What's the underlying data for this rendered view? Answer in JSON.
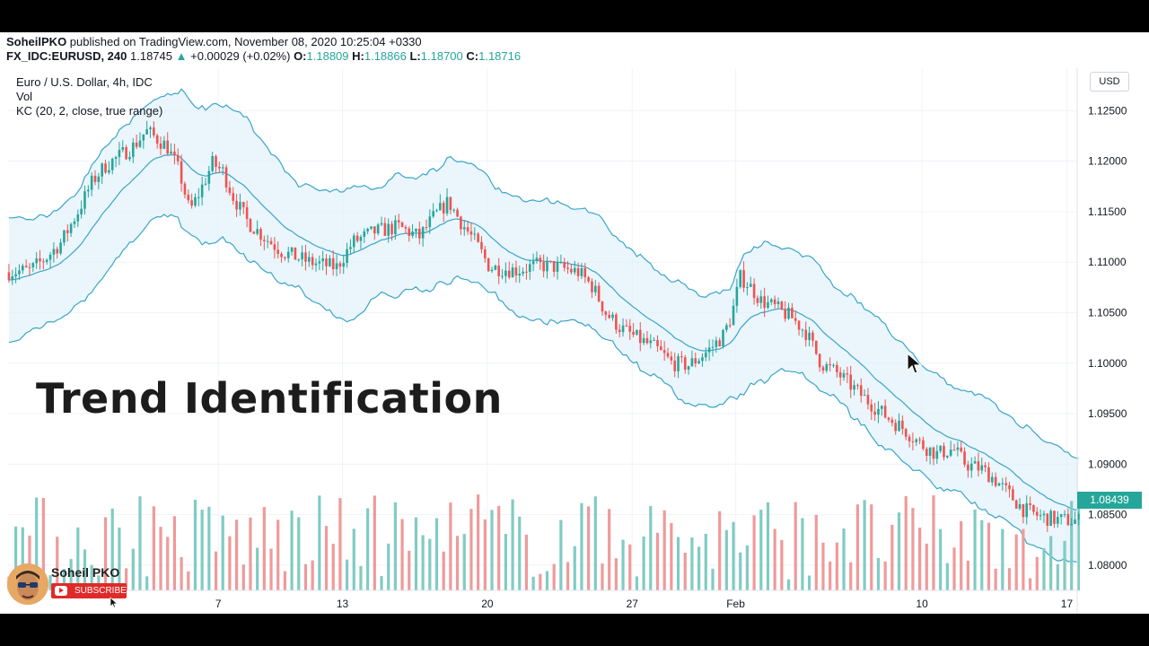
{
  "header": {
    "author": "SoheilPKO",
    "published": " published on TradingView.com, November 08, 2020 10:25:04 +0330",
    "symbol": "FX_IDC:EURUSD, 240",
    "last": "1.18745",
    "change": "+0.00029 (+0.02%)",
    "o_label": "O:",
    "o_value": "1.18809",
    "h_label": "H:",
    "h_value": "1.18866",
    "l_label": "L:",
    "l_value": "1.18700",
    "c_label": "C:",
    "c_value": "1.18716"
  },
  "legend": {
    "series_name": "Euro / U.S. Dollar, 4h, IDC",
    "volume": "Vol",
    "indicator": "KC (20, 2, close, true range)"
  },
  "overlay": {
    "title": "Trend Identification",
    "channel_name": "Soheil PKO",
    "subscribe_label": "SUBSCRIBE"
  },
  "colors": {
    "up": "#26a69a",
    "down": "#ef5350",
    "vol_up": "#80cbc4",
    "vol_down": "#ef9a9a",
    "channel_line": "#3aa5c8",
    "channel_fill": "#e3f2fb"
  },
  "chart_data": {
    "type": "candlestick",
    "currency": "USD",
    "last_price_label": "1.08439",
    "ylim": [
      1.0775,
      1.1285
    ],
    "y_ticks": [
      "1.12500",
      "1.12000",
      "1.11500",
      "1.11000",
      "1.10500",
      "1.10000",
      "1.09500",
      "1.09000",
      "1.08500",
      "1.08000"
    ],
    "x_ticks": [
      "7",
      "13",
      "20",
      "27",
      "Feb",
      "10",
      "17"
    ],
    "x_tick_days": [
      7,
      13,
      20,
      27,
      32,
      41,
      48
    ],
    "x_range_days": [
      -3.2,
      48.5
    ],
    "price_path": [
      [
        -3.2,
        1.109
      ],
      [
        -2.0,
        1.1092
      ],
      [
        -1.2,
        1.1105
      ],
      [
        -0.5,
        1.112
      ],
      [
        0.3,
        1.115
      ],
      [
        1.0,
        1.118
      ],
      [
        1.6,
        1.1195
      ],
      [
        2.3,
        1.1205
      ],
      [
        3.0,
        1.1215
      ],
      [
        3.6,
        1.123
      ],
      [
        4.6,
        1.1215
      ],
      [
        5.2,
        1.119
      ],
      [
        5.7,
        1.115
      ],
      [
        6.2,
        1.117
      ],
      [
        6.8,
        1.1198
      ],
      [
        7.3,
        1.119
      ],
      [
        7.8,
        1.1165
      ],
      [
        8.5,
        1.114
      ],
      [
        9.3,
        1.1125
      ],
      [
        10.2,
        1.111
      ],
      [
        11.5,
        1.11
      ],
      [
        12.8,
        1.1095
      ],
      [
        13.6,
        1.112
      ],
      [
        14.6,
        1.113
      ],
      [
        15.8,
        1.1135
      ],
      [
        16.8,
        1.1125
      ],
      [
        17.5,
        1.1145
      ],
      [
        18.2,
        1.116
      ],
      [
        18.8,
        1.114
      ],
      [
        19.5,
        1.112
      ],
      [
        20.2,
        1.1095
      ],
      [
        21.5,
        1.1092
      ],
      [
        22.5,
        1.1097
      ],
      [
        23.5,
        1.1095
      ],
      [
        24.5,
        1.109
      ],
      [
        25.2,
        1.1075
      ],
      [
        25.8,
        1.105
      ],
      [
        26.5,
        1.1035
      ],
      [
        27.3,
        1.1025
      ],
      [
        28.2,
        1.1015
      ],
      [
        29.0,
        1.1
      ],
      [
        29.8,
        1.0998
      ],
      [
        30.3,
        1.1005
      ],
      [
        30.9,
        1.1015
      ],
      [
        31.5,
        1.1028
      ],
      [
        31.9,
        1.1048
      ],
      [
        32.3,
        1.1085
      ],
      [
        32.7,
        1.1078
      ],
      [
        33.3,
        1.1062
      ],
      [
        34.0,
        1.1055
      ],
      [
        34.8,
        1.1045
      ],
      [
        35.5,
        1.103
      ],
      [
        36.2,
        1.1
      ],
      [
        37.0,
        1.099
      ],
      [
        37.8,
        1.0975
      ],
      [
        38.5,
        1.0962
      ],
      [
        39.5,
        1.0945
      ],
      [
        40.2,
        1.0935
      ],
      [
        41.0,
        1.092
      ],
      [
        41.8,
        1.091
      ],
      [
        42.6,
        1.0915
      ],
      [
        43.2,
        1.09
      ],
      [
        44.0,
        1.0895
      ],
      [
        44.6,
        1.0885
      ],
      [
        45.3,
        1.087
      ],
      [
        46.0,
        1.0855
      ],
      [
        46.8,
        1.0848
      ],
      [
        47.6,
        1.0845
      ],
      [
        48.5,
        1.0844
      ]
    ],
    "keltner_channel": {
      "length": 20,
      "multiplier": 2,
      "source": "close",
      "band_style": "true range"
    },
    "volume_seed": 7
  }
}
